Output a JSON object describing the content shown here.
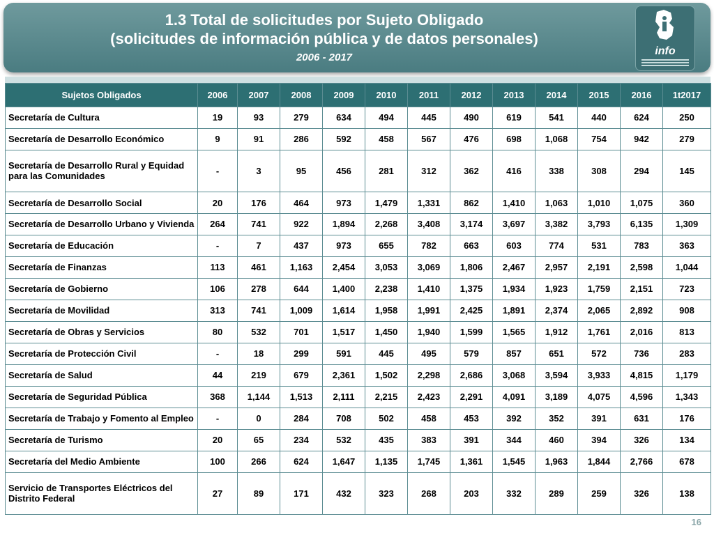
{
  "header": {
    "title_line1": "1.3 Total de solicitudes por Sujeto Obligado",
    "title_line2": "(solicitudes de información pública y de datos personales)",
    "period": "2006 - 2017"
  },
  "logo": {
    "text": "info",
    "icon": "infodf-logo-icon"
  },
  "page_number": "16",
  "chart_data": {
    "type": "table",
    "columns": [
      "Sujetos Obligados",
      "2006",
      "2007",
      "2008",
      "2009",
      "2010",
      "2011",
      "2012",
      "2013",
      "2014",
      "2015",
      "2016",
      "1t2017"
    ],
    "rows": [
      [
        "Secretaría de Cultura",
        "19",
        "93",
        "279",
        "634",
        "494",
        "445",
        "490",
        "619",
        "541",
        "440",
        "624",
        "250"
      ],
      [
        "Secretaría de Desarrollo Económico",
        "9",
        "91",
        "286",
        "592",
        "458",
        "567",
        "476",
        "698",
        "1,068",
        "754",
        "942",
        "279"
      ],
      [
        "Secretaría de Desarrollo Rural y Equidad para las Comunidades",
        "-",
        "3",
        "95",
        "456",
        "281",
        "312",
        "362",
        "416",
        "338",
        "308",
        "294",
        "145"
      ],
      [
        "Secretaría de Desarrollo Social",
        "20",
        "176",
        "464",
        "973",
        "1,479",
        "1,331",
        "862",
        "1,410",
        "1,063",
        "1,010",
        "1,075",
        "360"
      ],
      [
        "Secretaría de Desarrollo Urbano y Vivienda",
        "264",
        "741",
        "922",
        "1,894",
        "2,268",
        "3,408",
        "3,174",
        "3,697",
        "3,382",
        "3,793",
        "6,135",
        "1,309"
      ],
      [
        "Secretaría de Educación",
        "-",
        "7",
        "437",
        "973",
        "655",
        "782",
        "663",
        "603",
        "774",
        "531",
        "783",
        "363"
      ],
      [
        "Secretaría de Finanzas",
        "113",
        "461",
        "1,163",
        "2,454",
        "3,053",
        "3,069",
        "1,806",
        "2,467",
        "2,957",
        "2,191",
        "2,598",
        "1,044"
      ],
      [
        "Secretaría de Gobierno",
        "106",
        "278",
        "644",
        "1,400",
        "2,238",
        "1,410",
        "1,375",
        "1,934",
        "1,923",
        "1,759",
        "2,151",
        "723"
      ],
      [
        "Secretaría de Movilidad",
        "313",
        "741",
        "1,009",
        "1,614",
        "1,958",
        "1,991",
        "2,425",
        "1,891",
        "2,374",
        "2,065",
        "2,892",
        "908"
      ],
      [
        "Secretaría de Obras y Servicios",
        "80",
        "532",
        "701",
        "1,517",
        "1,450",
        "1,940",
        "1,599",
        "1,565",
        "1,912",
        "1,761",
        "2,016",
        "813"
      ],
      [
        "Secretaría de Protección Civil",
        "-",
        "18",
        "299",
        "591",
        "445",
        "495",
        "579",
        "857",
        "651",
        "572",
        "736",
        "283"
      ],
      [
        "Secretaría de Salud",
        "44",
        "219",
        "679",
        "2,361",
        "1,502",
        "2,298",
        "2,686",
        "3,068",
        "3,594",
        "3,933",
        "4,815",
        "1,179"
      ],
      [
        "Secretaría de Seguridad Pública",
        "368",
        "1,144",
        "1,513",
        "2,111",
        "2,215",
        "2,423",
        "2,291",
        "4,091",
        "3,189",
        "4,075",
        "4,596",
        "1,343"
      ],
      [
        "Secretaría de Trabajo y Fomento al Empleo",
        "-",
        "0",
        "284",
        "708",
        "502",
        "458",
        "453",
        "392",
        "352",
        "391",
        "631",
        "176"
      ],
      [
        "Secretaría de Turismo",
        "20",
        "65",
        "234",
        "532",
        "435",
        "383",
        "391",
        "344",
        "460",
        "394",
        "326",
        "134"
      ],
      [
        "Secretaría del Medio Ambiente",
        "100",
        "266",
        "624",
        "1,647",
        "1,135",
        "1,745",
        "1,361",
        "1,545",
        "1,963",
        "1,844",
        "2,766",
        "678"
      ],
      [
        "Servicio de Transportes Eléctricos del Distrito Federal",
        "27",
        "89",
        "171",
        "432",
        "323",
        "268",
        "203",
        "332",
        "289",
        "259",
        "326",
        "138"
      ]
    ]
  },
  "colors": {
    "banner": "#4a7c81",
    "header_row": "#2d6f73",
    "grid": "#5b8c92",
    "text_light": "#ffffff"
  }
}
